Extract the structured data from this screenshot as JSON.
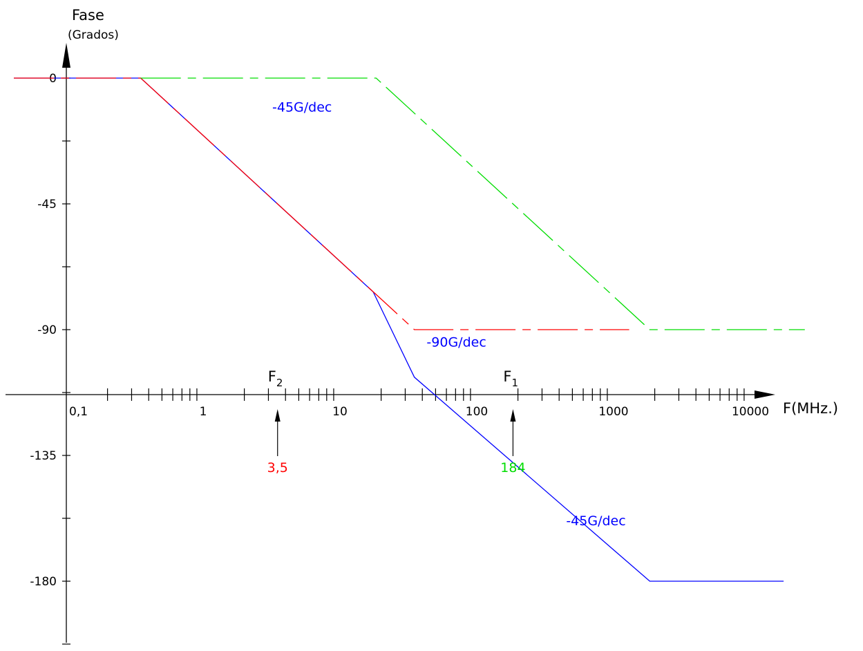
{
  "chart_data": {
    "type": "line",
    "xscale": "log",
    "yaxis": {
      "label": "Fase",
      "sublabel": "(Grados)",
      "ticks": [
        {
          "value": 0,
          "label": "0"
        },
        {
          "value": -22.5,
          "label": ""
        },
        {
          "value": -45,
          "label": "-45"
        },
        {
          "value": -67.5,
          "label": ""
        },
        {
          "value": -90,
          "label": "-90"
        },
        {
          "value": -112.5,
          "label": ""
        },
        {
          "value": -135,
          "label": "-135"
        },
        {
          "value": -157.5,
          "label": ""
        },
        {
          "value": -180,
          "label": "-180"
        },
        {
          "value": -202.5,
          "label": ""
        }
      ]
    },
    "xaxis": {
      "label": "F(MHz.)",
      "ticks": [
        {
          "value": 0.1,
          "label": "0,1"
        },
        {
          "value": 1,
          "label": "1"
        },
        {
          "value": 10,
          "label": "10"
        },
        {
          "value": 100,
          "label": "100"
        },
        {
          "value": 1000,
          "label": "1000"
        },
        {
          "value": 10000,
          "label": "10000"
        }
      ]
    },
    "series": [
      {
        "color": "#0000ff",
        "dash": "solid",
        "points": [
          [
            0.04,
            0
          ],
          [
            0.35,
            0
          ],
          [
            17.5,
            -76.5
          ],
          [
            35,
            -107
          ],
          [
            1840,
            -180
          ],
          [
            17500,
            -180
          ]
        ]
      },
      {
        "color": "#ff0000",
        "dash": "dashed",
        "points": [
          [
            0.04,
            0
          ],
          [
            0.35,
            0
          ],
          [
            35,
            -90
          ],
          [
            1300,
            -90
          ]
        ]
      },
      {
        "color": "#00dd00",
        "dash": "dashed",
        "points": [
          [
            0.35,
            0
          ],
          [
            18.4,
            0
          ],
          [
            1840,
            -90
          ],
          [
            25000,
            -90
          ]
        ]
      }
    ],
    "annotations": [
      {
        "text": "-45G/dec",
        "color": "#0000ff",
        "x": 3.2,
        "y": -12
      },
      {
        "text": "-90G/dec",
        "color": "#0000ff",
        "x": 43,
        "y": -96
      },
      {
        "text": "-45G/dec",
        "color": "#0000ff",
        "x": 450,
        "y": -160
      }
    ],
    "markers": [
      {
        "name": "F2",
        "sub": "2",
        "x": 3.5,
        "value_label": "3,5",
        "color": "#ff0000"
      },
      {
        "name": "F1",
        "sub": "1",
        "x": 184,
        "value_label": "184",
        "color": "#00dd00"
      }
    ]
  }
}
